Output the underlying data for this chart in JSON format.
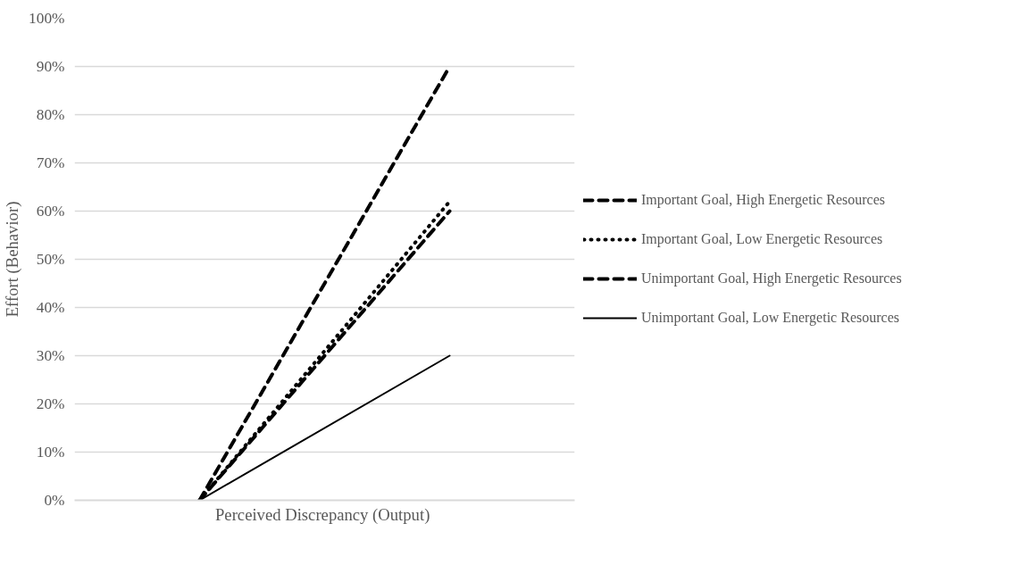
{
  "chart_data": {
    "type": "line",
    "xlabel": "Perceived Discrepancy  (Output)",
    "ylabel": "Effort (Behavior)",
    "categories": [
      null,
      null
    ],
    "series": [
      {
        "name": "Important Goal, High Energetic Resources",
        "color": "#000000",
        "line_style": "dashed",
        "values": [
          0,
          90
        ]
      },
      {
        "name": "Important Goal, Low Energetic Resources",
        "color": "#000000",
        "line_style": "dotted",
        "values": [
          0,
          62
        ]
      },
      {
        "name": "Unimportant Goal, High Energetic Resources",
        "color": "#000000",
        "line_style": "dashed",
        "values": [
          0,
          60
        ]
      },
      {
        "name": "Unimportant Goal, Low Energetic Resources",
        "color": "#000000",
        "line_style": "solid",
        "values": [
          0,
          30
        ]
      }
    ],
    "ylim": [
      0,
      100
    ],
    "yticks": [
      {
        "value": 0,
        "label": "0%"
      },
      {
        "value": 10,
        "label": "10%"
      },
      {
        "value": 20,
        "label": "20%"
      },
      {
        "value": 30,
        "label": "30%"
      },
      {
        "value": 40,
        "label": "40%"
      },
      {
        "value": 50,
        "label": "50%"
      },
      {
        "value": 60,
        "label": "60%"
      },
      {
        "value": 70,
        "label": "70%"
      },
      {
        "value": 80,
        "label": "80%"
      },
      {
        "value": 90,
        "label": "90%"
      },
      {
        "value": 100,
        "label": "100%"
      }
    ],
    "grid": "y",
    "legend": "right"
  }
}
